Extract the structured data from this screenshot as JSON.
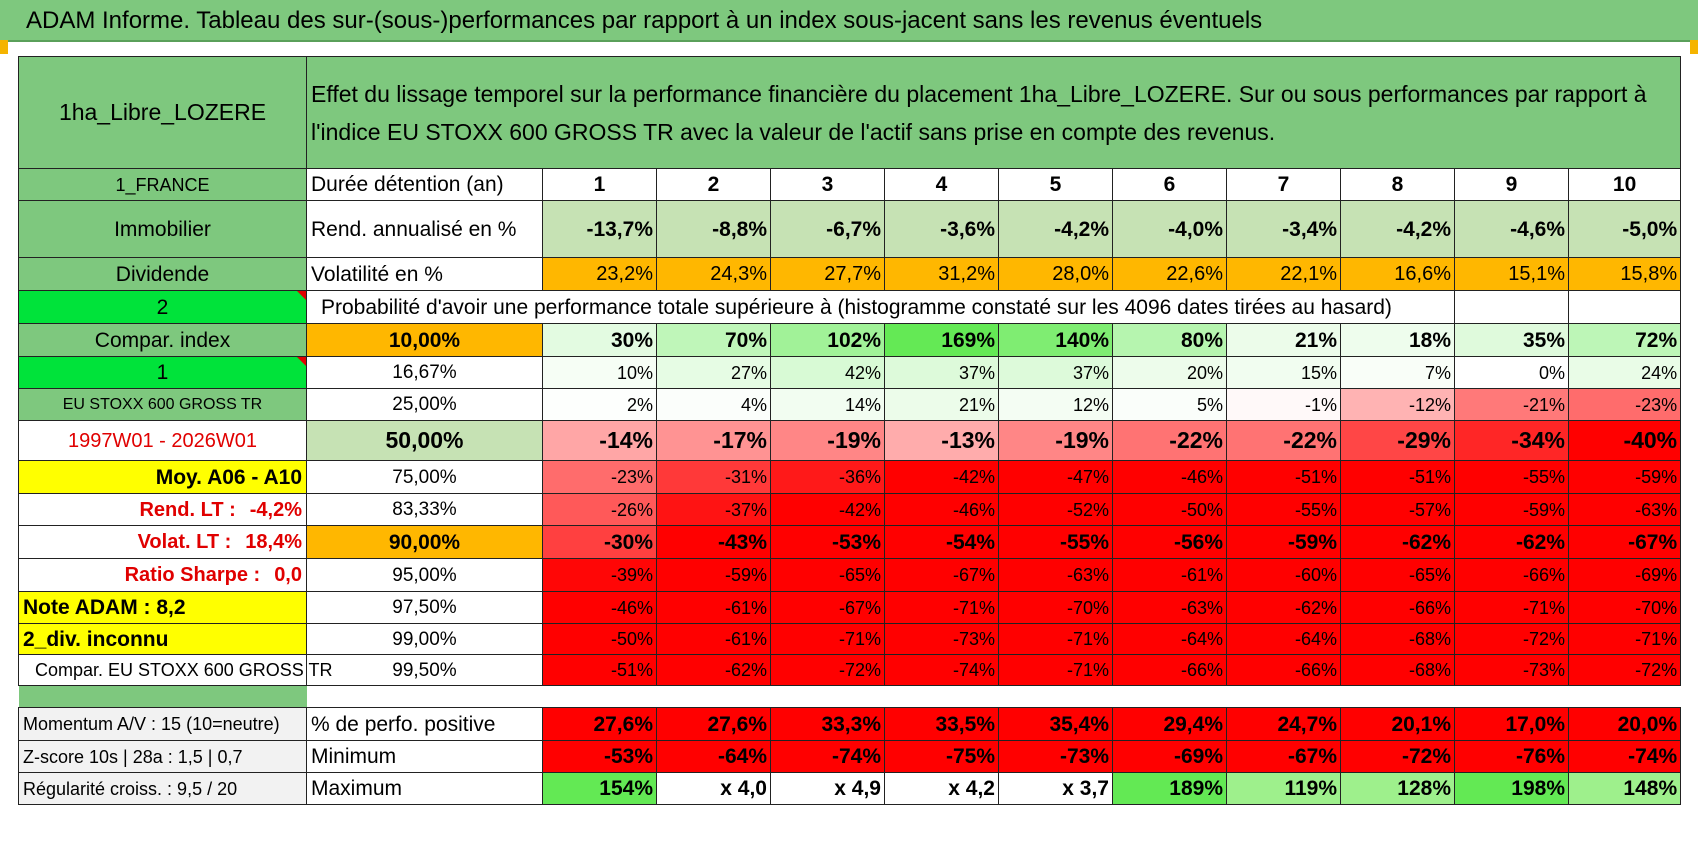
{
  "banner": {
    "title": "ADAM Informe. Tableau des sur-(sous-)performances par rapport à un index sous-jacent sans les revenus éventuels"
  },
  "colors": {
    "banner_green": "#7ec87e",
    "light_green": "#c6e2b4",
    "orange": "#ffb700",
    "yellow": "#ffff00",
    "bright_green": "#00e33a",
    "negative_red": "#ff0000"
  },
  "header": {
    "fund_name": "1ha_Libre_LOZERE",
    "description": "Effet du lissage temporel sur la performance financière du placement 1ha_Libre_LOZERE. Sur ou sous performances par rapport à l'indice EU STOXX 600 GROSS TR avec la valeur de l'actif sans prise en compte des revenus."
  },
  "side": {
    "country": "1_FRANCE",
    "category": "Immobilier",
    "revenue_type": "Dividende",
    "index_code_1": "2",
    "compar_index": "Compar. index",
    "index_code_2": "1",
    "index_name": "EU STOXX 600 GROSS TR",
    "period": "1997W01 - 2026W01",
    "moy": "Moy. A06 - A10",
    "rend_lt_label": "Rend. LT :",
    "rend_lt_value": "-4,2%",
    "volat_lt_label": "Volat. LT :",
    "volat_lt_value": "18,4%",
    "sharpe_label": "Ratio Sharpe :",
    "sharpe_value": "0,0",
    "note_adam": "Note ADAM : 8,2",
    "div": "2_div. inconnu",
    "compar_full": "Compar. EU STOXX 600 GROSS TR",
    "momentum": "Momentum A/V : 15 (10=neutre)",
    "zscore": "Z-score 10s | 28a : 1,5 | 0,7",
    "regularite": "Régularité croiss. : 9,5 / 20"
  },
  "table": {
    "duration_label": "Durée détention (an)",
    "years": [
      "1",
      "2",
      "3",
      "4",
      "5",
      "6",
      "7",
      "8",
      "9",
      "10"
    ],
    "rend_label": "Rend. annualisé en %",
    "rend": [
      "-13,7%",
      "-8,8%",
      "-6,7%",
      "-3,6%",
      "-4,2%",
      "-4,0%",
      "-3,4%",
      "-4,2%",
      "-4,6%",
      "-5,0%"
    ],
    "vol_label": "Volatilité en %",
    "vol": [
      "23,2%",
      "24,3%",
      "27,7%",
      "31,2%",
      "28,0%",
      "22,6%",
      "22,1%",
      "16,6%",
      "15,1%",
      "15,8%"
    ],
    "prob_label": "Probabilité d'avoir une performance totale supérieure à (histogramme constaté sur les 4096 dates tirées au hasard)",
    "quantiles": [
      {
        "p": "10,00%",
        "values": [
          "30%",
          "70%",
          "102%",
          "169%",
          "140%",
          "80%",
          "21%",
          "18%",
          "35%",
          "72%"
        ]
      },
      {
        "p": "16,67%",
        "values": [
          "10%",
          "27%",
          "42%",
          "37%",
          "37%",
          "20%",
          "15%",
          "7%",
          "0%",
          "24%"
        ]
      },
      {
        "p": "25,00%",
        "values": [
          "2%",
          "4%",
          "14%",
          "21%",
          "12%",
          "5%",
          "-1%",
          "-12%",
          "-21%",
          "-23%"
        ]
      },
      {
        "p": "50,00%",
        "values": [
          "-14%",
          "-17%",
          "-19%",
          "-13%",
          "-19%",
          "-22%",
          "-22%",
          "-29%",
          "-34%",
          "-40%"
        ]
      },
      {
        "p": "75,00%",
        "values": [
          "-23%",
          "-31%",
          "-36%",
          "-42%",
          "-47%",
          "-46%",
          "-51%",
          "-51%",
          "-55%",
          "-59%"
        ]
      },
      {
        "p": "83,33%",
        "values": [
          "-26%",
          "-37%",
          "-42%",
          "-46%",
          "-52%",
          "-50%",
          "-55%",
          "-57%",
          "-59%",
          "-63%"
        ]
      },
      {
        "p": "90,00%",
        "values": [
          "-30%",
          "-43%",
          "-53%",
          "-54%",
          "-55%",
          "-56%",
          "-59%",
          "-62%",
          "-62%",
          "-67%"
        ]
      },
      {
        "p": "95,00%",
        "values": [
          "-39%",
          "-59%",
          "-65%",
          "-67%",
          "-63%",
          "-61%",
          "-60%",
          "-65%",
          "-66%",
          "-69%"
        ]
      },
      {
        "p": "97,50%",
        "values": [
          "-46%",
          "-61%",
          "-67%",
          "-71%",
          "-70%",
          "-63%",
          "-62%",
          "-66%",
          "-71%",
          "-70%"
        ]
      },
      {
        "p": "99,00%",
        "values": [
          "-50%",
          "-61%",
          "-71%",
          "-73%",
          "-71%",
          "-64%",
          "-64%",
          "-68%",
          "-72%",
          "-71%"
        ]
      },
      {
        "p": "99,50%",
        "values": [
          "-51%",
          "-62%",
          "-72%",
          "-74%",
          "-71%",
          "-66%",
          "-66%",
          "-68%",
          "-73%",
          "-72%"
        ]
      }
    ],
    "pos_label": "% de perfo. positive",
    "pos": [
      "27,6%",
      "27,6%",
      "33,3%",
      "33,5%",
      "35,4%",
      "29,4%",
      "24,7%",
      "20,1%",
      "17,0%",
      "20,0%"
    ],
    "min_label": "Minimum",
    "min": [
      "-53%",
      "-64%",
      "-74%",
      "-75%",
      "-73%",
      "-69%",
      "-67%",
      "-72%",
      "-76%",
      "-74%"
    ],
    "max_label": "Maximum",
    "max": [
      "154%",
      "x 4,0",
      "x 4,9",
      "x 4,2",
      "x 3,7",
      "189%",
      "119%",
      "128%",
      "198%",
      "148%"
    ]
  }
}
